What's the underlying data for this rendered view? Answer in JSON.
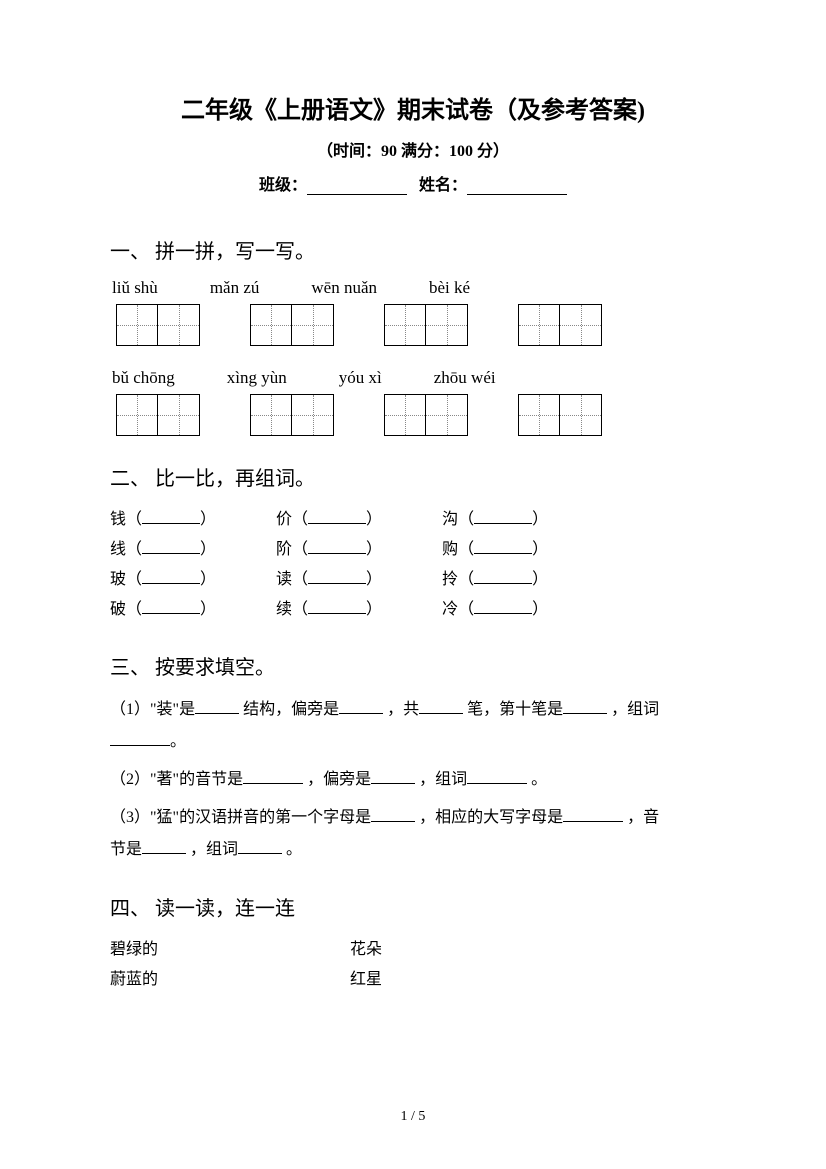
{
  "title": "二年级《上册语文》期末试卷（及参考答案)",
  "subtitle": "（时间：90   满分：100 分）",
  "info": {
    "class_label": "班级：",
    "name_label": "姓名："
  },
  "section1": {
    "heading": "一、 拼一拼，写一写。",
    "row1": [
      "liǔ    shù",
      "mǎn  zú",
      "wēn  nuǎn",
      "bèi    ké"
    ],
    "row2": [
      "bǔ    chōng",
      "xìng  yùn",
      "yóu  xì",
      "zhōu wéi"
    ]
  },
  "section2": {
    "heading": "二、 比一比，再组词。",
    "rows": [
      [
        "钱（",
        "价（",
        "沟（"
      ],
      [
        "线（",
        "阶（",
        "购（"
      ],
      [
        "玻（",
        "读（",
        "拎（"
      ],
      [
        "破（",
        "续（",
        "冷（"
      ]
    ],
    "close": "）"
  },
  "section3": {
    "heading": "三、 按要求填空。",
    "p1a": "（1）\"装\"是",
    "p1b": "结构，偏旁是",
    "p1c": "，共",
    "p1d": "笔，第十笔是",
    "p1e": "，组词",
    "p1f": "。",
    "p2a": "（2）\"著\"的音节是",
    "p2b": "，偏旁是",
    "p2c": "，组词",
    "p2d": "。",
    "p3a": "（3）\"猛\"的汉语拼音的第一个字母是",
    "p3b": "，相应的大写字母是",
    "p3c": "，音",
    "p3d": "节是",
    "p3e": "，组词",
    "p3f": "。"
  },
  "section4": {
    "heading": "四、 读一读，连一连",
    "pairs": [
      [
        "碧绿的",
        "花朵"
      ],
      [
        "蔚蓝的",
        "红星"
      ]
    ]
  },
  "page_number": "1 / 5",
  "colors": {
    "text": "#000000",
    "bg": "#ffffff",
    "dotted": "#888888"
  }
}
